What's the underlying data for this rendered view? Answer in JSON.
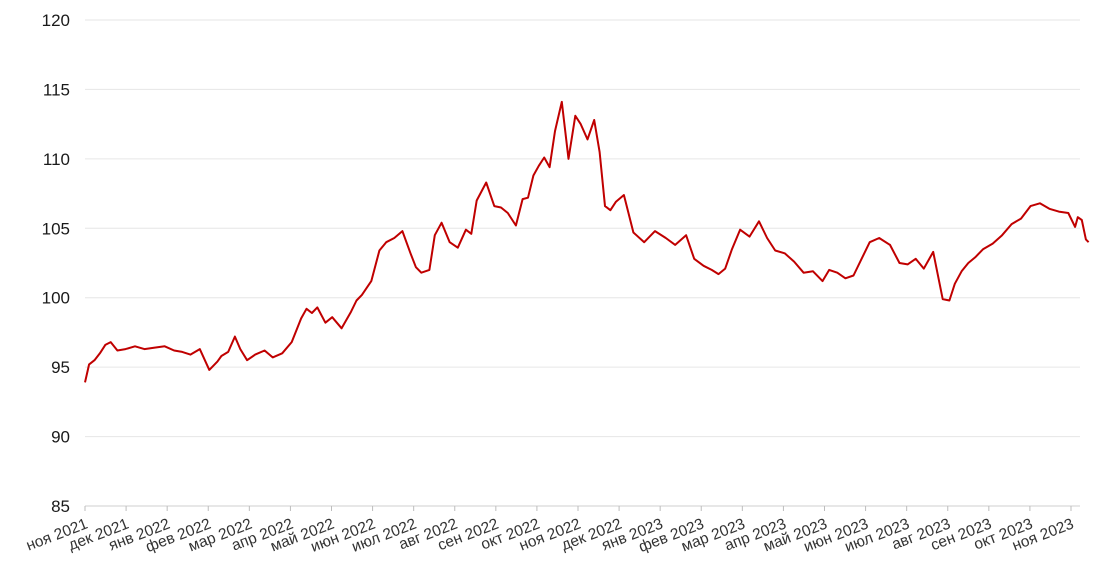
{
  "chart_data": {
    "type": "line",
    "title": "",
    "xlabel": "",
    "ylabel": "",
    "ylim": [
      85,
      120
    ],
    "y_ticks": [
      85,
      90,
      95,
      100,
      105,
      110,
      115,
      120
    ],
    "x_tick_labels": [
      "ноя 2021",
      "дек 2021",
      "янв 2022",
      "фев 2022",
      "мар 2022",
      "апр 2022",
      "май 2022",
      "июн 2022",
      "июл 2022",
      "авг 2022",
      "сен 2022",
      "окт 2022",
      "ноя 2022",
      "дек 2022",
      "янв 2023",
      "фев 2023",
      "мар 2023",
      "апр 2023",
      "май 2023",
      "июн 2023",
      "июл 2023",
      "авг 2023",
      "сен 2023",
      "окт 2023",
      "ноя 2023"
    ],
    "grid": true,
    "line_color": "#c00000",
    "series": [
      {
        "x": [
          "2021-11-01",
          "2021-11-04",
          "2021-11-08",
          "2021-11-12",
          "2021-11-16",
          "2021-11-20",
          "2021-11-25",
          "2021-12-01",
          "2021-12-08",
          "2021-12-15",
          "2021-12-22",
          "2021-12-30",
          "2022-01-06",
          "2022-01-12",
          "2022-01-18",
          "2022-01-25",
          "2022-02-01",
          "2022-02-07",
          "2022-02-10",
          "2022-02-15",
          "2022-02-20",
          "2022-02-24",
          "2022-03-01",
          "2022-03-07",
          "2022-03-14",
          "2022-03-20",
          "2022-03-27",
          "2022-04-03",
          "2022-04-10",
          "2022-04-14",
          "2022-04-18",
          "2022-04-22",
          "2022-04-28",
          "2022-05-03",
          "2022-05-10",
          "2022-05-17",
          "2022-05-21",
          "2022-05-25",
          "2022-06-01",
          "2022-06-07",
          "2022-06-12",
          "2022-06-18",
          "2022-06-24",
          "2022-06-30",
          "2022-07-04",
          "2022-07-08",
          "2022-07-14",
          "2022-07-18",
          "2022-07-23",
          "2022-07-29",
          "2022-08-04",
          "2022-08-10",
          "2022-08-14",
          "2022-08-18",
          "2022-08-25",
          "2022-08-31",
          "2022-09-05",
          "2022-09-10",
          "2022-09-16",
          "2022-09-21",
          "2022-09-25",
          "2022-09-29",
          "2022-10-03",
          "2022-10-07",
          "2022-10-11",
          "2022-10-15",
          "2022-10-20",
          "2022-10-25",
          "2022-10-30",
          "2022-11-03",
          "2022-11-08",
          "2022-11-13",
          "2022-11-17",
          "2022-11-21",
          "2022-11-25",
          "2022-11-29",
          "2022-12-05",
          "2022-12-12",
          "2022-12-20",
          "2022-12-28",
          "2023-01-05",
          "2023-01-12",
          "2023-01-20",
          "2023-01-26",
          "2023-02-02",
          "2023-02-08",
          "2023-02-13",
          "2023-02-18",
          "2023-02-23",
          "2023-03-01",
          "2023-03-08",
          "2023-03-15",
          "2023-03-21",
          "2023-03-27",
          "2023-04-03",
          "2023-04-10",
          "2023-04-17",
          "2023-04-24",
          "2023-05-01",
          "2023-05-06",
          "2023-05-12",
          "2023-05-18",
          "2023-05-24",
          "2023-05-30",
          "2023-06-05",
          "2023-06-12",
          "2023-06-20",
          "2023-06-27",
          "2023-07-03",
          "2023-07-09",
          "2023-07-15",
          "2023-07-22",
          "2023-07-29",
          "2023-08-03",
          "2023-08-07",
          "2023-08-12",
          "2023-08-17",
          "2023-08-22",
          "2023-08-28",
          "2023-09-04",
          "2023-09-11",
          "2023-09-18",
          "2023-09-25",
          "2023-10-02",
          "2023-10-09",
          "2023-10-16",
          "2023-10-23",
          "2023-10-30",
          "2023-11-04",
          "2023-11-06",
          "2023-11-09",
          "2023-11-12",
          "2023-11-14"
        ],
        "y": [
          93.9,
          95.2,
          95.5,
          96.0,
          96.6,
          96.8,
          96.2,
          96.3,
          96.5,
          96.3,
          96.4,
          96.5,
          96.2,
          96.1,
          95.9,
          96.3,
          94.8,
          95.4,
          95.8,
          96.1,
          97.2,
          96.3,
          95.5,
          95.9,
          96.2,
          95.7,
          96.0,
          96.8,
          98.5,
          99.2,
          98.9,
          99.3,
          98.2,
          98.6,
          97.8,
          99.0,
          99.8,
          100.2,
          101.2,
          103.4,
          104.0,
          104.3,
          104.8,
          103.2,
          102.2,
          101.8,
          102.0,
          104.5,
          105.4,
          104.0,
          103.6,
          104.9,
          104.6,
          107.0,
          108.3,
          106.6,
          106.5,
          106.1,
          105.2,
          107.1,
          107.2,
          108.8,
          109.5,
          110.1,
          109.4,
          112.0,
          114.1,
          110.0,
          113.1,
          112.5,
          111.4,
          112.8,
          110.5,
          106.6,
          106.3,
          106.9,
          107.4,
          104.7,
          104.0,
          104.8,
          104.3,
          103.8,
          104.5,
          102.8,
          102.3,
          102.0,
          101.7,
          102.1,
          103.5,
          104.9,
          104.4,
          105.5,
          104.3,
          103.4,
          103.2,
          102.6,
          101.8,
          101.9,
          101.2,
          102.0,
          101.8,
          101.4,
          101.6,
          102.8,
          104.0,
          104.3,
          103.8,
          102.5,
          102.4,
          102.8,
          102.1,
          103.3,
          99.9,
          99.8,
          101.0,
          101.9,
          102.5,
          102.9,
          103.5,
          103.9,
          104.5,
          105.3,
          105.7,
          106.6,
          106.8,
          106.4,
          106.2,
          106.1,
          105.1,
          105.8,
          105.6,
          104.2,
          104.0
        ]
      }
    ]
  }
}
